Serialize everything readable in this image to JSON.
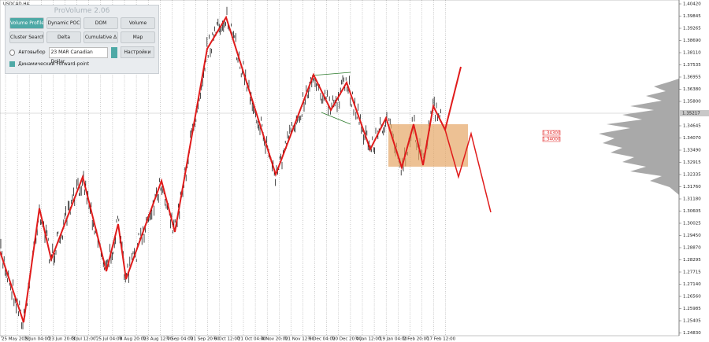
{
  "window": {
    "symbol": "USDCAD,H4"
  },
  "panel": {
    "title": "ProVolume 2.06",
    "buttons": [
      "Volume Profile",
      "Dynamic POC",
      "DOM",
      "Volume",
      "Cluster Search",
      "Delta",
      "Cumulative Δ",
      "Map"
    ],
    "auto_select": "Автовыбор",
    "instrument": "23 MAR Canadian Dollar",
    "settings": "Настройки",
    "forward_point": "Динамический Forward-point"
  },
  "price_axis": {
    "labels": [
      "1.40420",
      "1.39845",
      "1.39265",
      "1.38690",
      "1.38110",
      "1.37535",
      "1.36955",
      "1.36380",
      "1.35800",
      "1.34645",
      "1.34070",
      "1.33490",
      "1.32915",
      "1.32335",
      "1.31760",
      "1.31180",
      "1.30605",
      "1.30025",
      "1.29450",
      "1.28870",
      "1.28295",
      "1.27715",
      "1.27140",
      "1.26560",
      "1.25985",
      "1.25405",
      "1.24830"
    ],
    "current": "1.35217"
  },
  "time_axis": {
    "labels": [
      "25 May 2022",
      "9 Jun 04:00",
      "23 Jun 20:00",
      "8 Jul 12:00",
      "25 Jul 04:00",
      "8 Aug 20:00",
      "23 Aug 12:00",
      "7 Sep 04:00",
      "21 Sep 20:00",
      "6 Oct 12:00",
      "21 Oct 04:00",
      "4 Nov 20:00",
      "21 Nov 12:00",
      "6 Dec 04:00",
      "20 Dec 20:00",
      "4 Jan 12:00",
      "19 Jan 04:00",
      "2 Feb 20:00",
      "17 Feb 12:00"
    ]
  },
  "price_tags": [
    "1.34300",
    "1.34000"
  ]
}
